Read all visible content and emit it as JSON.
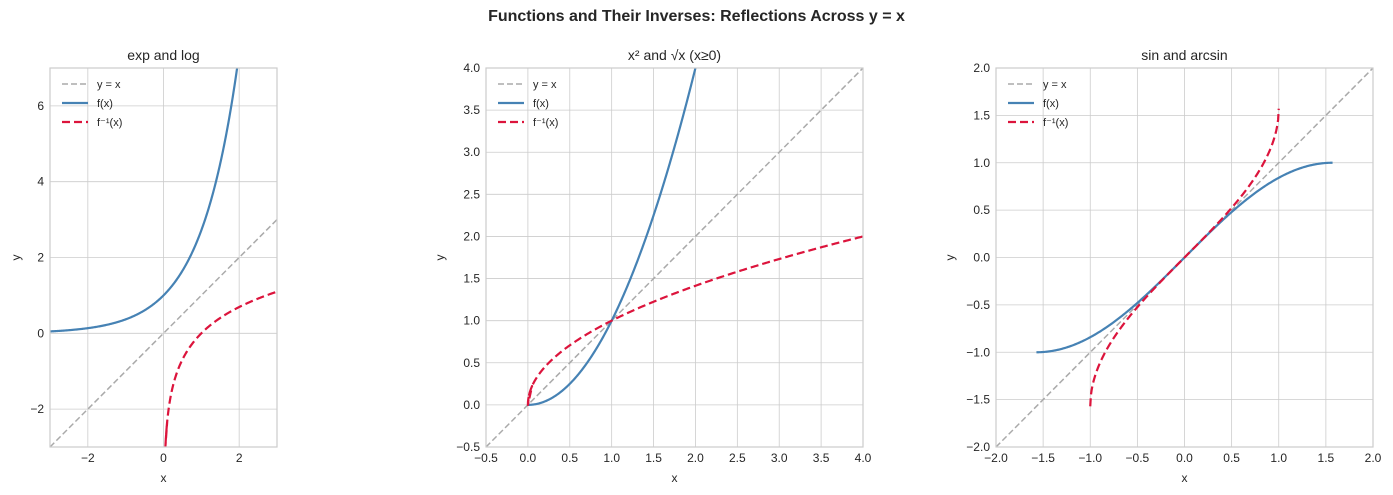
{
  "figure": {
    "suptitle": "Functions and Their Inverses: Reflections Across y = x"
  },
  "colors": {
    "identity": "#aaaaaa",
    "function": "#4682b4",
    "inverse": "#dc143c",
    "grid": "#cccccc",
    "spine": "#cccccc"
  },
  "legend_labels": [
    "y = x",
    "f(x)",
    "f⁻¹(x)"
  ],
  "chart_data": [
    {
      "type": "line",
      "title": "exp and log",
      "xlabel": "x",
      "ylabel": "y",
      "xlim": [
        -3,
        3
      ],
      "ylim": [
        -3,
        7
      ],
      "xticks": [
        -2,
        0,
        2
      ],
      "xtick_labels": [
        "−2",
        "0",
        "2"
      ],
      "yticks": [
        -2,
        0,
        2,
        4,
        6
      ],
      "ytick_labels": [
        "−2",
        "0",
        "2",
        "4",
        "6"
      ],
      "grid": true,
      "legend_position": "upper left",
      "series": [
        {
          "name": "y = x",
          "style": "dashed",
          "x": [
            -3,
            3
          ],
          "y": [
            -3,
            3
          ]
        },
        {
          "name": "f(x)",
          "function": "exp(x)",
          "style": "solid",
          "x": [
            -3,
            -2,
            -1,
            -0.5,
            0,
            0.5,
            1,
            1.5,
            1.946
          ],
          "y": [
            0.05,
            0.135,
            0.368,
            0.607,
            1,
            1.649,
            2.718,
            4.482,
            7.0
          ]
        },
        {
          "name": "f⁻¹(x)",
          "function": "ln(x)",
          "style": "dashed",
          "x": [
            0.05,
            0.1,
            0.25,
            0.5,
            1,
            1.5,
            2,
            2.5,
            3
          ],
          "y": [
            -3.0,
            -2.303,
            -1.386,
            -0.693,
            0,
            0.405,
            0.693,
            0.916,
            1.099
          ]
        }
      ]
    },
    {
      "type": "line",
      "title": "x² and √x (x≥0)",
      "xlabel": "x",
      "ylabel": "y",
      "xlim": [
        -0.5,
        4.0
      ],
      "ylim": [
        -0.5,
        4.0
      ],
      "xticks": [
        -0.5,
        0.0,
        0.5,
        1.0,
        1.5,
        2.0,
        2.5,
        3.0,
        3.5,
        4.0
      ],
      "xtick_labels": [
        "−0.5",
        "0.0",
        "0.5",
        "1.0",
        "1.5",
        "2.0",
        "2.5",
        "3.0",
        "3.5",
        "4.0"
      ],
      "yticks": [
        -0.5,
        0.0,
        0.5,
        1.0,
        1.5,
        2.0,
        2.5,
        3.0,
        3.5,
        4.0
      ],
      "ytick_labels": [
        "−0.5",
        "0.0",
        "0.5",
        "1.0",
        "1.5",
        "2.0",
        "2.5",
        "3.0",
        "3.5",
        "4.0"
      ],
      "grid": true,
      "legend_position": "upper left",
      "series": [
        {
          "name": "y = x",
          "style": "dashed",
          "x": [
            -0.5,
            4.0
          ],
          "y": [
            -0.5,
            4.0
          ]
        },
        {
          "name": "f(x)",
          "function": "x^2",
          "style": "solid",
          "x": [
            0,
            0.25,
            0.5,
            0.75,
            1.0,
            1.25,
            1.5,
            1.75,
            2.0
          ],
          "y": [
            0,
            0.0625,
            0.25,
            0.5625,
            1.0,
            1.5625,
            2.25,
            3.0625,
            4.0
          ]
        },
        {
          "name": "f⁻¹(x)",
          "function": "sqrt(x)",
          "style": "dashed",
          "x": [
            0,
            0.05,
            0.25,
            0.5,
            1.0,
            1.5,
            2.0,
            2.5,
            3.0,
            3.5,
            4.0
          ],
          "y": [
            0,
            0.224,
            0.5,
            0.707,
            1.0,
            1.225,
            1.414,
            1.581,
            1.732,
            1.871,
            2.0
          ]
        }
      ]
    },
    {
      "type": "line",
      "title": "sin and arcsin",
      "xlabel": "x",
      "ylabel": "y",
      "xlim": [
        -2.0,
        2.0
      ],
      "ylim": [
        -2.0,
        2.0
      ],
      "xticks": [
        -2.0,
        -1.5,
        -1.0,
        -0.5,
        0.0,
        0.5,
        1.0,
        1.5,
        2.0
      ],
      "xtick_labels": [
        "−2.0",
        "−1.5",
        "−1.0",
        "−0.5",
        "0.0",
        "0.5",
        "1.0",
        "1.5",
        "2.0"
      ],
      "yticks": [
        -2.0,
        -1.5,
        -1.0,
        -0.5,
        0.0,
        0.5,
        1.0,
        1.5,
        2.0
      ],
      "ytick_labels": [
        "−2.0",
        "−1.5",
        "−1.0",
        "−0.5",
        "0.0",
        "0.5",
        "1.0",
        "1.5",
        "2.0"
      ],
      "grid": true,
      "legend_position": "upper left",
      "series": [
        {
          "name": "y = x",
          "style": "dashed",
          "x": [
            -2.0,
            2.0
          ],
          "y": [
            -2.0,
            2.0
          ]
        },
        {
          "name": "f(x)",
          "function": "sin(x)",
          "style": "solid",
          "x": [
            -1.571,
            -1.2,
            -0.8,
            -0.4,
            0,
            0.4,
            0.8,
            1.2,
            1.571
          ],
          "y": [
            -1.0,
            -0.932,
            -0.717,
            -0.389,
            0,
            0.389,
            0.717,
            0.932,
            1.0
          ]
        },
        {
          "name": "f⁻¹(x)",
          "function": "arcsin(x)",
          "style": "dashed",
          "x": [
            -1.0,
            -0.95,
            -0.8,
            -0.5,
            0,
            0.5,
            0.8,
            0.95,
            1.0
          ],
          "y": [
            -1.571,
            -1.253,
            -0.927,
            -0.524,
            0,
            0.524,
            0.927,
            1.253,
            1.571
          ]
        }
      ]
    }
  ]
}
